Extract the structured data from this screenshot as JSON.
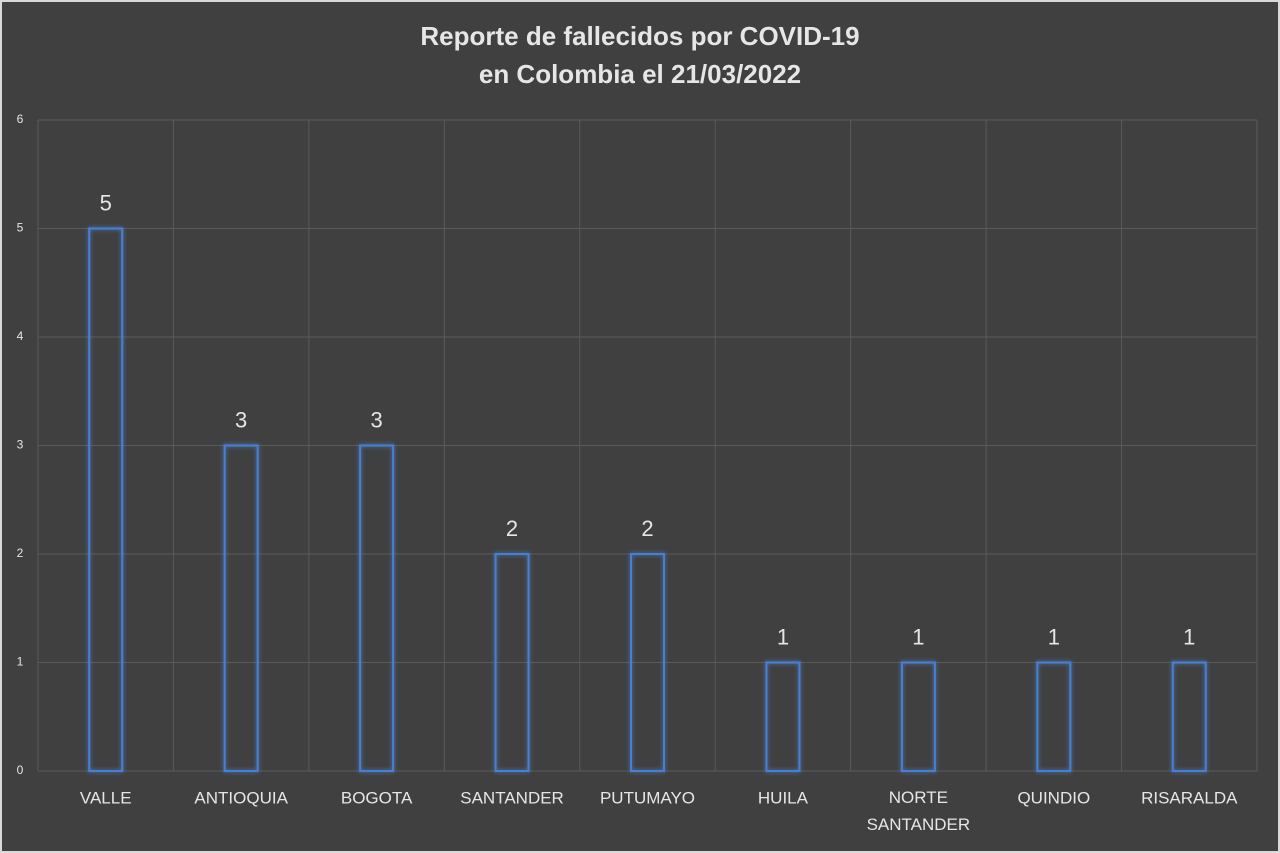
{
  "chart_data": {
    "type": "bar",
    "title": [
      "Reporte de fallecidos por COVID-19",
      "en Colombia el 21/03/2022"
    ],
    "categories": [
      "VALLE",
      "ANTIOQUIA",
      "BOGOTA",
      "SANTANDER",
      "PUTUMAYO",
      "HUILA",
      "NORTE SANTANDER",
      "QUINDIO",
      "RISARALDA"
    ],
    "values": [
      5,
      3,
      3,
      2,
      2,
      1,
      1,
      1,
      1
    ],
    "color": "#4a7fd0",
    "ylim": [
      0,
      6
    ],
    "yticks": [
      0,
      1,
      2,
      3,
      4,
      5,
      6
    ],
    "grid": true
  }
}
